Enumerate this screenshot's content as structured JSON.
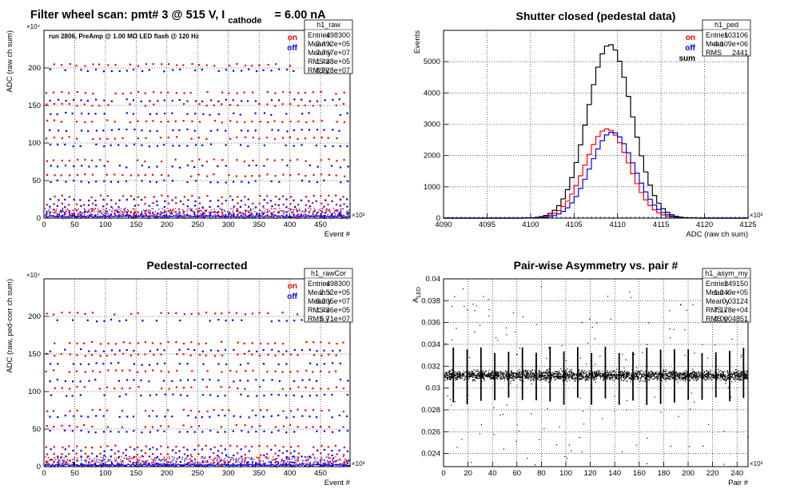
{
  "page": {
    "header_prefix": "Filter wheel scan: pmt#   3 @   515 V, I",
    "header_subscript": "cathode",
    "header_suffix": "= 6.00 nA"
  },
  "colors": {
    "on": "#ff0000",
    "off": "#0000ff",
    "sum": "#000000",
    "grid": "#000000"
  },
  "chart_data": [
    {
      "id": "raw",
      "type": "scatter",
      "title": "",
      "xlabel": "Event #",
      "ylabel": "ADC (raw ch sum)",
      "xlim": [
        0,
        498
      ],
      "ylim": [
        0,
        250
      ],
      "x_multiplier": "×10³",
      "y_multiplier": "×10⁴",
      "xticks": [
        0,
        50,
        100,
        150,
        200,
        250,
        300,
        350,
        400,
        450
      ],
      "yticks": [
        0,
        50,
        100,
        150,
        200
      ],
      "grid": true,
      "annotation": "run 2806, PreAmp @ 1.00 MΩ   LED flash @  120 Hz",
      "legend": {
        "position": "top-right",
        "entries": [
          {
            "label": "on",
            "color": "#ff0000"
          },
          {
            "label": "off",
            "color": "#0000ff"
          }
        ]
      },
      "levels_on": [
        5,
        10,
        20,
        30,
        58,
        78,
        108,
        130,
        152,
        168,
        205
      ],
      "levels_off": [
        5,
        8,
        17,
        25,
        50,
        70,
        98,
        118,
        140,
        158,
        198
      ],
      "stats": {
        "name": "h1_raw",
        "rows": [
          [
            "Entries",
            "498300"
          ],
          [
            "Mean x",
            "2.492e+05"
          ],
          [
            "Mean y",
            "7.767e+07"
          ],
          [
            "RMS x",
            "1.438e+05"
          ],
          [
            "RMS y",
            "6.828e+07"
          ]
        ]
      }
    },
    {
      "id": "ped",
      "type": "line",
      "title": "Shutter closed (pedestal data)",
      "xlabel": "ADC (raw ch sum)",
      "ylabel": "Events",
      "xlim": [
        4090,
        4125
      ],
      "ylim": [
        0,
        6000
      ],
      "x_multiplier": "×10³",
      "y_multiplier": "",
      "xticks": [
        4090,
        4095,
        4100,
        4105,
        4110,
        4115,
        4120,
        4125
      ],
      "yticks": [
        0,
        1000,
        2000,
        3000,
        4000,
        5000
      ],
      "grid": true,
      "legend": {
        "position": "top-right",
        "entries": [
          {
            "label": "on",
            "color": "#ff0000"
          },
          {
            "label": "off",
            "color": "#0000ff"
          },
          {
            "label": "sum",
            "color": "#000000"
          }
        ]
      },
      "series": [
        {
          "name": "on",
          "color": "#ff0000",
          "peak_x": 4108.8,
          "peak_y": 2850,
          "sigma": 2.5
        },
        {
          "name": "off",
          "color": "#0000ff",
          "peak_x": 4109.4,
          "peak_y": 2750,
          "sigma": 2.5
        },
        {
          "name": "sum",
          "color": "#000000",
          "peak_x": 4109.1,
          "peak_y": 5550,
          "sigma": 2.55
        }
      ],
      "stats": {
        "name": "h1_ped",
        "rows": [
          [
            "Entries",
            "103106"
          ],
          [
            "Mean",
            "4.109e+06"
          ],
          [
            "RMS",
            "2441"
          ]
        ]
      }
    },
    {
      "id": "rawCor",
      "type": "scatter",
      "title": "Pedestal-corrected",
      "xlabel": "Event #",
      "ylabel": "ADC (raw, ped-corr ch sum)",
      "xlim": [
        0,
        498
      ],
      "ylim": [
        0,
        250
      ],
      "x_multiplier": "×10³",
      "y_multiplier": "×10⁴",
      "xticks": [
        0,
        50,
        100,
        150,
        200,
        250,
        300,
        350,
        400,
        450
      ],
      "yticks": [
        0,
        50,
        100,
        150,
        200
      ],
      "grid": true,
      "legend": {
        "position": "top-right",
        "entries": [
          {
            "label": "on",
            "color": "#ff0000"
          },
          {
            "label": "off",
            "color": "#0000ff"
          }
        ]
      },
      "levels_on": [
        3,
        8,
        18,
        28,
        55,
        76,
        106,
        128,
        150,
        166,
        205
      ],
      "levels_off": [
        3,
        6,
        15,
        23,
        48,
        68,
        96,
        116,
        138,
        156,
        196
      ],
      "stats": {
        "name": "h1_rawCor",
        "rows": [
          [
            "Entries",
            "498300"
          ],
          [
            "Mean x",
            "2.52e+05"
          ],
          [
            "Mean y",
            "8.205e+07"
          ],
          [
            "RMS x",
            "1.436e+05"
          ],
          [
            "RMS y",
            "6.71e+07"
          ]
        ]
      }
    },
    {
      "id": "asym",
      "type": "scatter",
      "title": "Pair-wise Asymmetry vs. pair #",
      "xlabel": "Pair #",
      "ylabel": "A_LED",
      "xlim": [
        0,
        249
      ],
      "ylim": [
        0.0228,
        0.04
      ],
      "x_multiplier": "×10³",
      "y_multiplier": "",
      "xticks": [
        0,
        20,
        40,
        60,
        80,
        100,
        120,
        140,
        160,
        180,
        200,
        220,
        240
      ],
      "yticks": [
        0.024,
        0.026,
        0.028,
        0.03,
        0.032,
        0.034,
        0.036,
        0.038,
        0.04
      ],
      "grid": true,
      "band_center": 0.0312,
      "spike_period_pairs": 11.3,
      "stats": {
        "name": "h1_asym_my",
        "rows": [
          [
            "Entries",
            "249150"
          ],
          [
            "Mean x",
            "1.249e+05"
          ],
          [
            "Mean y",
            "0.03124"
          ],
          [
            "RMS x",
            "7.178e+04"
          ],
          [
            "RMS y",
            "0.0004851"
          ]
        ]
      }
    }
  ]
}
